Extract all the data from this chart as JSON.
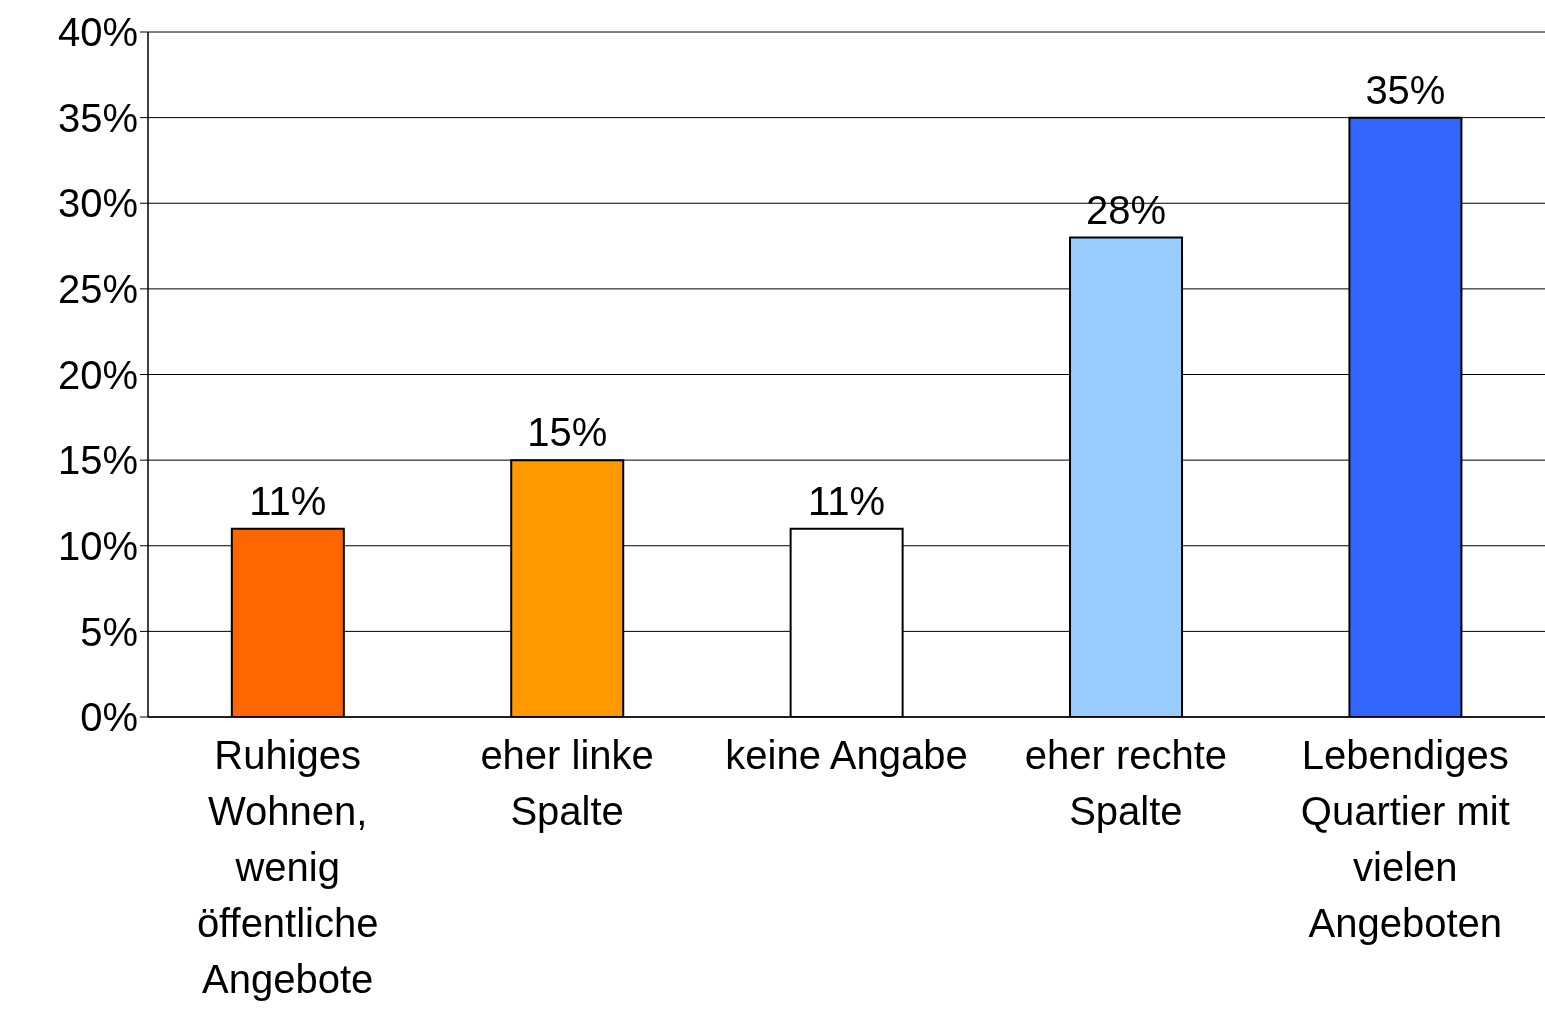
{
  "chart_data": {
    "type": "bar",
    "categories": [
      "Ruhiges Wohnen, wenig öffentliche Angebote",
      "eher linke Spalte",
      "keine Angabe",
      "eher rechte Spalte",
      "Lebendiges Quartier mit vielen Angeboten"
    ],
    "values": [
      11,
      15,
      11,
      28,
      35
    ],
    "colors": [
      "#ff6600",
      "#ff9900",
      "#ffffff",
      "#99ccff",
      "#3366ff"
    ],
    "value_labels": [
      "11%",
      "15%",
      "11%",
      "28%",
      "35%"
    ],
    "ylim": [
      0,
      40
    ],
    "yticks": [
      {
        "value": 0,
        "label": "0%"
      },
      {
        "value": 5,
        "label": "5%"
      },
      {
        "value": 10,
        "label": "10%"
      },
      {
        "value": 15,
        "label": "15%"
      },
      {
        "value": 20,
        "label": "20%"
      },
      {
        "value": 25,
        "label": "25%"
      },
      {
        "value": 30,
        "label": "30%"
      },
      {
        "value": 35,
        "label": "35%"
      },
      {
        "value": 40,
        "label": "40%"
      }
    ],
    "grid": "y"
  }
}
